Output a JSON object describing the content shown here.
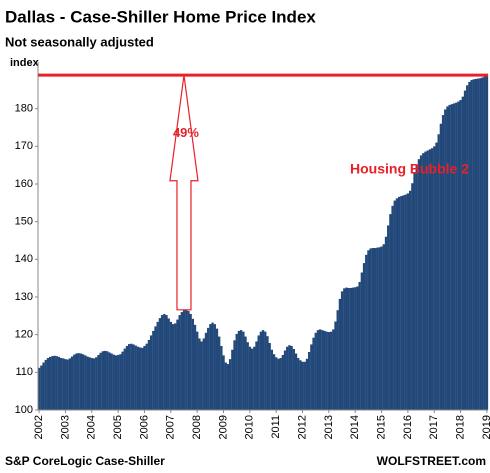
{
  "chart_data": {
    "type": "bar",
    "title": "Dallas - Case-Shiller Home Price Index",
    "subtitle": "Not seasonally adjusted",
    "y_label": "index",
    "source": "S&P CoreLogic Case-Shiller",
    "credit": "WOLFSTREET.com",
    "color": "#23497a",
    "annotation_color": "#e8202a",
    "grid": false,
    "ylim": [
      100,
      190
    ],
    "yticks": [
      100,
      110,
      120,
      130,
      140,
      150,
      160,
      170,
      180
    ],
    "reference_line": 188.9,
    "annotation": {
      "text": "49%",
      "from": 126.6,
      "to": 188.9
    },
    "label": "Housing Bubble 2",
    "categories": [
      "2002",
      null,
      null,
      null,
      null,
      null,
      null,
      null,
      null,
      null,
      null,
      null,
      "2003",
      null,
      null,
      null,
      null,
      null,
      null,
      null,
      null,
      null,
      null,
      null,
      "2004",
      null,
      null,
      null,
      null,
      null,
      null,
      null,
      null,
      null,
      null,
      null,
      "2005",
      null,
      null,
      null,
      null,
      null,
      null,
      null,
      null,
      null,
      null,
      null,
      "2006",
      null,
      null,
      null,
      null,
      null,
      null,
      null,
      null,
      null,
      null,
      null,
      "2007",
      null,
      null,
      null,
      null,
      null,
      null,
      null,
      null,
      null,
      null,
      null,
      "2008",
      null,
      null,
      null,
      null,
      null,
      null,
      null,
      null,
      null,
      null,
      null,
      "2009",
      null,
      null,
      null,
      null,
      null,
      null,
      null,
      null,
      null,
      null,
      null,
      "2010",
      null,
      null,
      null,
      null,
      null,
      null,
      null,
      null,
      null,
      null,
      null,
      "2011",
      null,
      null,
      null,
      null,
      null,
      null,
      null,
      null,
      null,
      null,
      null,
      "2012",
      null,
      null,
      null,
      null,
      null,
      null,
      null,
      null,
      null,
      null,
      null,
      "2013",
      null,
      null,
      null,
      null,
      null,
      null,
      null,
      null,
      null,
      null,
      null,
      "2014",
      null,
      null,
      null,
      null,
      null,
      null,
      null,
      null,
      null,
      null,
      null,
      "2015",
      null,
      null,
      null,
      null,
      null,
      null,
      null,
      null,
      null,
      null,
      null,
      "2016",
      null,
      null,
      null,
      null,
      null,
      null,
      null,
      null,
      null,
      null,
      null,
      "2017",
      null,
      null,
      null,
      null,
      null,
      null,
      null,
      null,
      null,
      null,
      null,
      "2018",
      null,
      null,
      null,
      null,
      null,
      null,
      null,
      null,
      null,
      null,
      null,
      "2019"
    ],
    "values": [
      111.2,
      111.8,
      112.6,
      113.3,
      113.8,
      114.1,
      114.3,
      114.4,
      114.3,
      114.1,
      113.8,
      113.7,
      113.5,
      113.4,
      113.7,
      114.2,
      114.7,
      115.0,
      115.1,
      115.0,
      114.8,
      114.5,
      114.2,
      114.0,
      113.8,
      113.7,
      114.0,
      114.6,
      115.2,
      115.6,
      115.7,
      115.6,
      115.3,
      115.0,
      114.7,
      114.5,
      114.6,
      114.8,
      115.5,
      116.3,
      117.0,
      117.5,
      117.6,
      117.4,
      117.1,
      116.8,
      116.6,
      116.5,
      117.0,
      117.6,
      118.6,
      119.8,
      121.0,
      122.2,
      123.4,
      124.4,
      125.2,
      125.5,
      125.2,
      124.3,
      123.4,
      122.8,
      123.0,
      124.0,
      125.2,
      126.0,
      126.5,
      126.6,
      126.3,
      125.5,
      124.2,
      122.6,
      120.8,
      119.0,
      118.2,
      119.0,
      120.5,
      121.8,
      122.8,
      123.2,
      122.8,
      121.6,
      119.5,
      117.0,
      114.5,
      112.6,
      112.2,
      113.5,
      116.0,
      118.5,
      120.2,
      121.0,
      121.2,
      120.8,
      119.5,
      118.0,
      116.8,
      116.3,
      116.8,
      118.2,
      119.8,
      120.8,
      121.2,
      120.8,
      119.6,
      117.8,
      116.0,
      114.8,
      114.0,
      113.6,
      113.8,
      114.6,
      115.8,
      116.8,
      117.2,
      117.0,
      116.2,
      115.0,
      113.8,
      113.2,
      112.8,
      112.8,
      113.6,
      115.4,
      117.4,
      119.2,
      120.5,
      121.2,
      121.4,
      121.2,
      121.0,
      120.8,
      120.7,
      120.8,
      121.4,
      123.5,
      126.5,
      129.5,
      131.5,
      132.3,
      132.5,
      132.4,
      132.4,
      132.5,
      132.6,
      132.8,
      134.0,
      136.5,
      139.0,
      141.2,
      142.4,
      142.9,
      143.0,
      143.0,
      143.1,
      143.2,
      143.4,
      144.0,
      146.0,
      149.0,
      152.0,
      154.2,
      155.6,
      156.2,
      156.6,
      156.8,
      157.0,
      157.2,
      157.5,
      158.2,
      160.2,
      162.8,
      165.0,
      166.6,
      167.6,
      168.2,
      168.6,
      168.9,
      169.2,
      169.5,
      170.0,
      171.0,
      173.2,
      176.0,
      178.3,
      179.8,
      180.6,
      181.0,
      181.2,
      181.4,
      181.6,
      181.9,
      182.3,
      183.2,
      184.8,
      186.2,
      187.1,
      187.6,
      187.8,
      187.9,
      188.0,
      188.1,
      188.3,
      188.6,
      188.9
    ]
  }
}
